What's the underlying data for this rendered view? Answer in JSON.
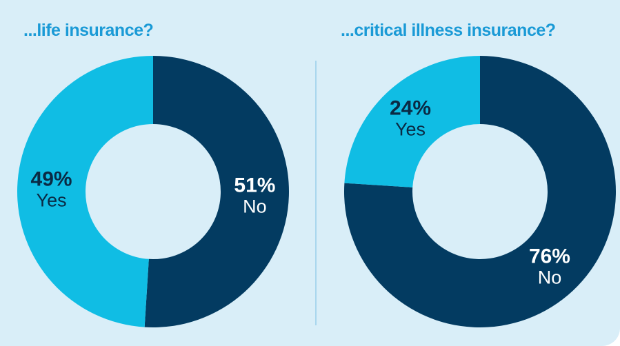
{
  "chart_data": [
    {
      "type": "pie",
      "variant": "donut",
      "title": "...life insurance?",
      "categories": [
        "No",
        "Yes"
      ],
      "values": [
        51,
        49
      ],
      "value_labels": [
        "51%",
        "49%"
      ],
      "colors": [
        "#033b61",
        "#10bde4"
      ]
    },
    {
      "type": "pie",
      "variant": "donut",
      "title": "...critical illness insurance?",
      "categories": [
        "No",
        "Yes"
      ],
      "values": [
        76,
        24
      ],
      "value_labels": [
        "76%",
        "24%"
      ],
      "colors": [
        "#033b61",
        "#10bde4"
      ]
    }
  ],
  "colors": {
    "background": "#d9eef8",
    "title": "#1a9ad6",
    "divider": "#a9d6ee",
    "label_on_dark": "#ffffff",
    "label_on_light": "#0a2a44"
  }
}
